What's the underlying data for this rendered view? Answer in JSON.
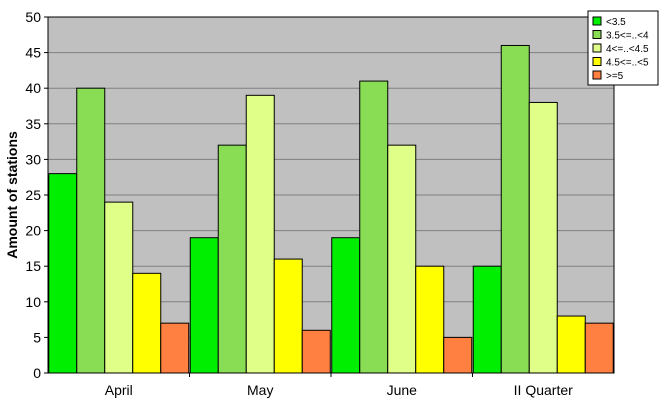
{
  "chart_data": {
    "type": "bar",
    "title": "",
    "xlabel": "",
    "ylabel": "Amount of stations",
    "ylim": [
      0,
      50
    ],
    "yticks": [
      0,
      5,
      10,
      15,
      20,
      25,
      30,
      35,
      40,
      45,
      50
    ],
    "categories": [
      "April",
      "May",
      "June",
      "II Quarter"
    ],
    "grid": true,
    "legend_position": "top-right",
    "plot_background": "#c0c0c0",
    "series": [
      {
        "name": "<3.5",
        "color": "#00ee00",
        "values": [
          28,
          19,
          19,
          15
        ]
      },
      {
        "name": "3.5<=..<4",
        "color": "#88dd55",
        "values": [
          40,
          32,
          41,
          46
        ]
      },
      {
        "name": "4<=..<4.5",
        "color": "#e0ff88",
        "values": [
          24,
          39,
          32,
          38
        ]
      },
      {
        "name": "4.5<=..<5",
        "color": "#ffff00",
        "values": [
          14,
          16,
          15,
          8
        ]
      },
      {
        "name": ">=5",
        "color": "#ff8040",
        "values": [
          7,
          6,
          5,
          7
        ]
      }
    ]
  }
}
